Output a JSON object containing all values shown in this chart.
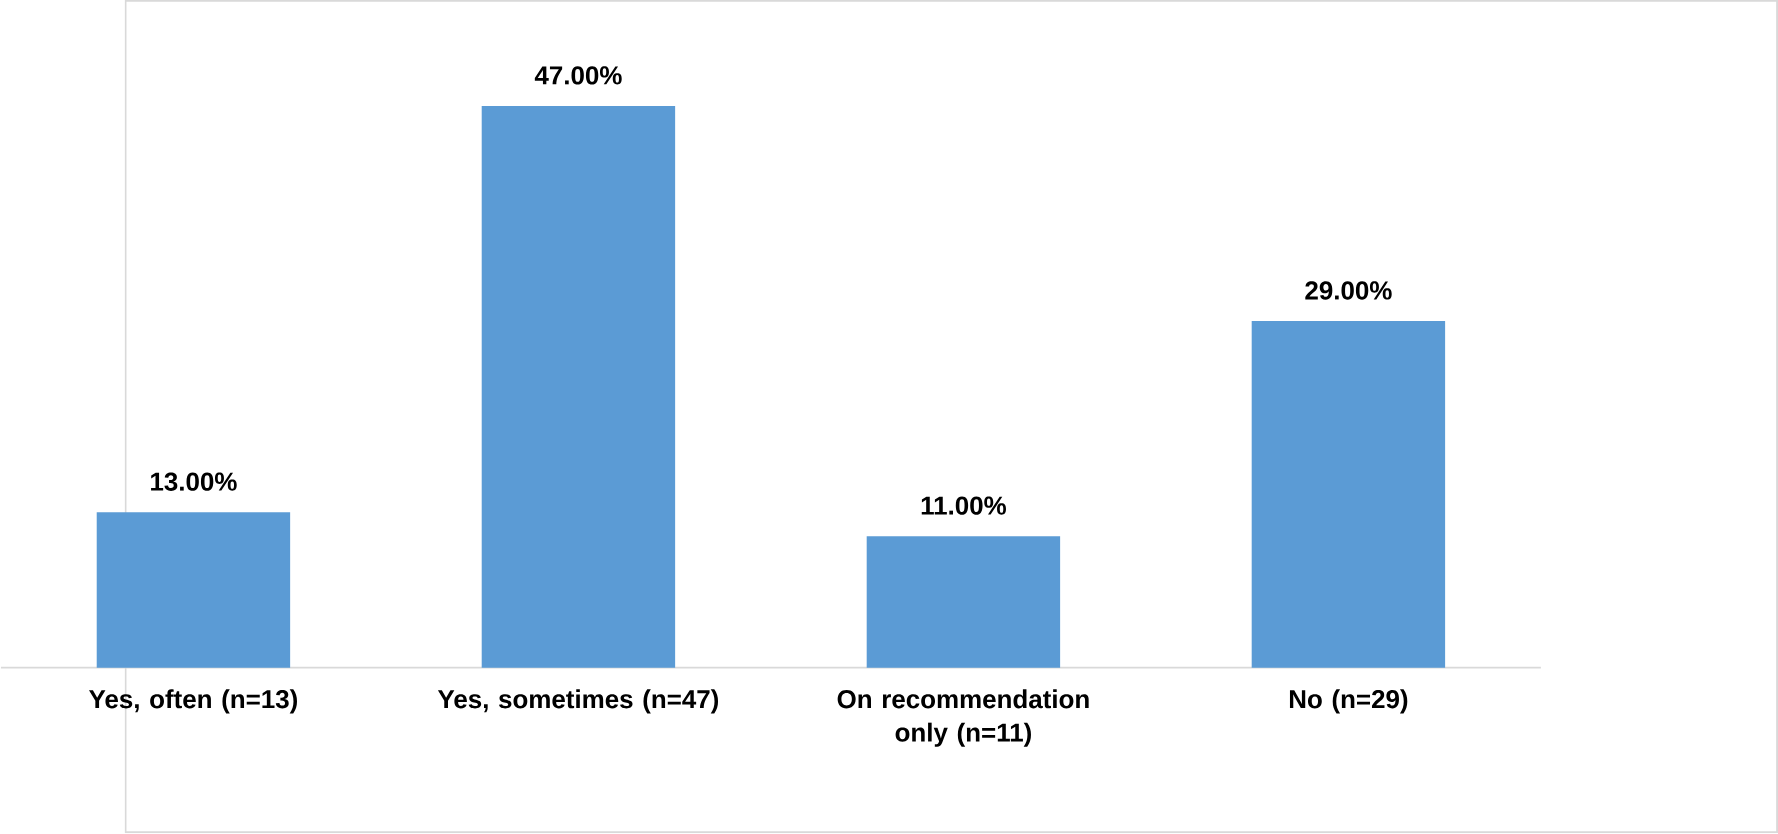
{
  "chart_data": {
    "type": "bar",
    "categories": [
      "Yes, often (n=13)",
      "Yes, sometimes (n=47)",
      "On recommendation only (n=11)",
      "No (n=29)"
    ],
    "values": [
      13,
      47,
      11,
      29
    ],
    "value_labels": [
      "13.00%",
      "47.00%",
      "11.00%",
      "29.00%"
    ],
    "color": "#5b9bd5"
  }
}
